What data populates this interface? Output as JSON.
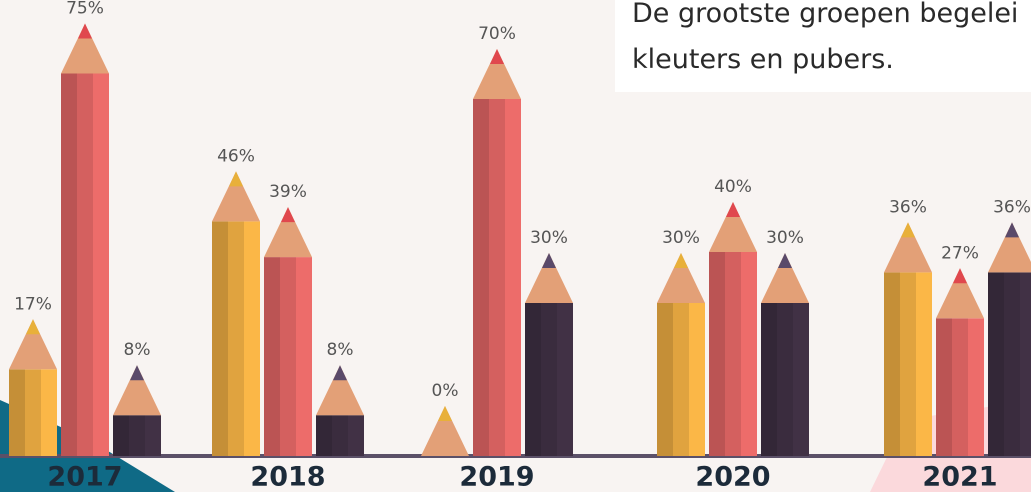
{
  "chart_data": {
    "type": "bar",
    "annotations": [
      "De grootste groepen begelei",
      "kleuters en pubers."
    ],
    "categories": [
      "2017",
      "2018",
      "2019",
      "2020",
      "2021"
    ],
    "series": [
      {
        "color": "#e0a33f",
        "values": [
          17,
          46,
          0,
          30,
          36
        ],
        "value_labels": [
          "17%",
          "46%",
          "0%",
          "30%",
          "36%"
        ]
      },
      {
        "color": "#d4605f",
        "values": [
          75,
          39,
          70,
          40,
          27
        ],
        "value_labels": [
          "75%",
          "39%",
          "70%",
          "40%",
          "27%"
        ]
      },
      {
        "color": "#3a2c3e",
        "values": [
          8,
          8,
          30,
          30,
          36
        ],
        "value_labels": [
          "8%",
          "8%",
          "30%",
          "30%",
          "36%"
        ]
      }
    ]
  }
}
